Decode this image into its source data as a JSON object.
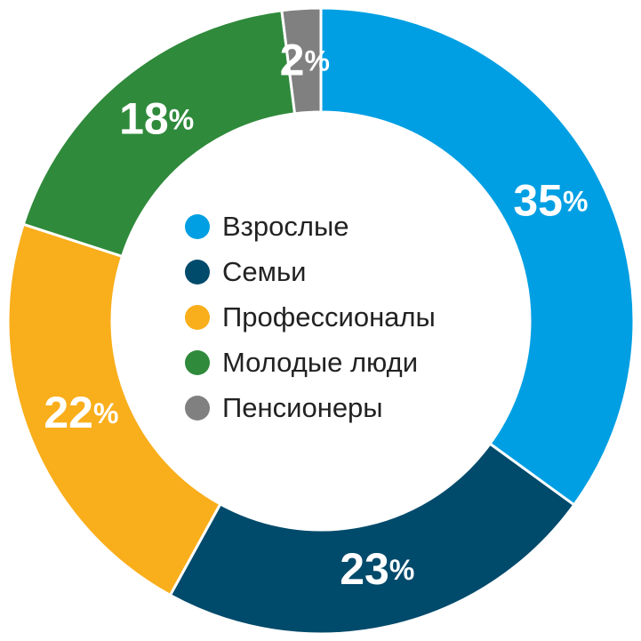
{
  "chart_data": {
    "type": "pie",
    "categories": [
      "Взрослые",
      "Семьи",
      "Профессионалы",
      "Молодые люди",
      "Пенсионеры"
    ],
    "values": [
      35,
      23,
      22,
      18,
      2
    ],
    "value_labels": [
      "35%",
      "23%",
      "22%",
      "18%",
      "2%"
    ],
    "colors": [
      "#009fe3",
      "#004a6b",
      "#f9ae1b",
      "#2f8a3b",
      "#808080"
    ]
  }
}
